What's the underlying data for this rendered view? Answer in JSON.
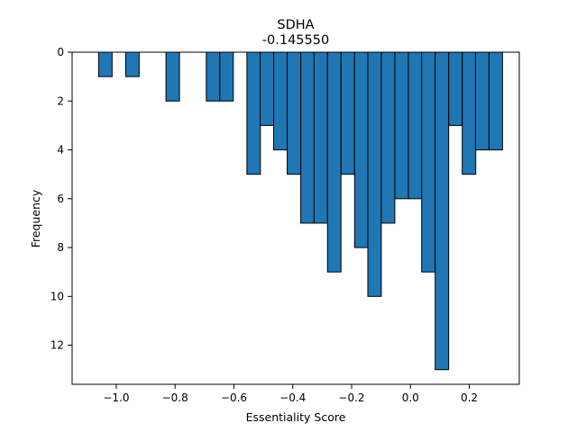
{
  "chart_data": {
    "type": "bar",
    "title": "SDHA",
    "subtitle": "-0.145550",
    "xlabel": "Essentiality Score",
    "ylabel": "Frequency",
    "xlim": [
      -1.15,
      0.37
    ],
    "ylim": [
      13.6,
      0
    ],
    "y_inverted": true,
    "grid": false,
    "bar_color": "#1f77b4",
    "bar_width": 0.0458,
    "bars": [
      {
        "x": -1.037,
        "y": 1
      },
      {
        "x": -0.945,
        "y": 1
      },
      {
        "x": -0.808,
        "y": 2
      },
      {
        "x": -0.671,
        "y": 2
      },
      {
        "x": -0.625,
        "y": 2
      },
      {
        "x": -0.533,
        "y": 5
      },
      {
        "x": -0.488,
        "y": 3
      },
      {
        "x": -0.442,
        "y": 4
      },
      {
        "x": -0.396,
        "y": 5
      },
      {
        "x": -0.35,
        "y": 7
      },
      {
        "x": -0.305,
        "y": 7
      },
      {
        "x": -0.259,
        "y": 9
      },
      {
        "x": -0.213,
        "y": 5
      },
      {
        "x": -0.167,
        "y": 8
      },
      {
        "x": -0.122,
        "y": 10
      },
      {
        "x": -0.076,
        "y": 7
      },
      {
        "x": -0.03,
        "y": 6
      },
      {
        "x": 0.016,
        "y": 6
      },
      {
        "x": 0.061,
        "y": 9
      },
      {
        "x": 0.107,
        "y": 13
      },
      {
        "x": 0.153,
        "y": 3
      },
      {
        "x": 0.199,
        "y": 5
      },
      {
        "x": 0.244,
        "y": 4
      },
      {
        "x": 0.29,
        "y": 4
      }
    ],
    "x_ticks": [
      {
        "value": -1.0,
        "label": "−1.0"
      },
      {
        "value": -0.8,
        "label": "−0.8"
      },
      {
        "value": -0.6,
        "label": "−0.6"
      },
      {
        "value": -0.4,
        "label": "−0.4"
      },
      {
        "value": -0.2,
        "label": "−0.2"
      },
      {
        "value": 0.0,
        "label": "0.0"
      },
      {
        "value": 0.2,
        "label": "0.2"
      }
    ],
    "y_ticks": [
      {
        "value": 0,
        "label": "0"
      },
      {
        "value": 2,
        "label": "2"
      },
      {
        "value": 4,
        "label": "4"
      },
      {
        "value": 6,
        "label": "6"
      },
      {
        "value": 8,
        "label": "8"
      },
      {
        "value": 10,
        "label": "10"
      },
      {
        "value": 12,
        "label": "12"
      }
    ]
  }
}
